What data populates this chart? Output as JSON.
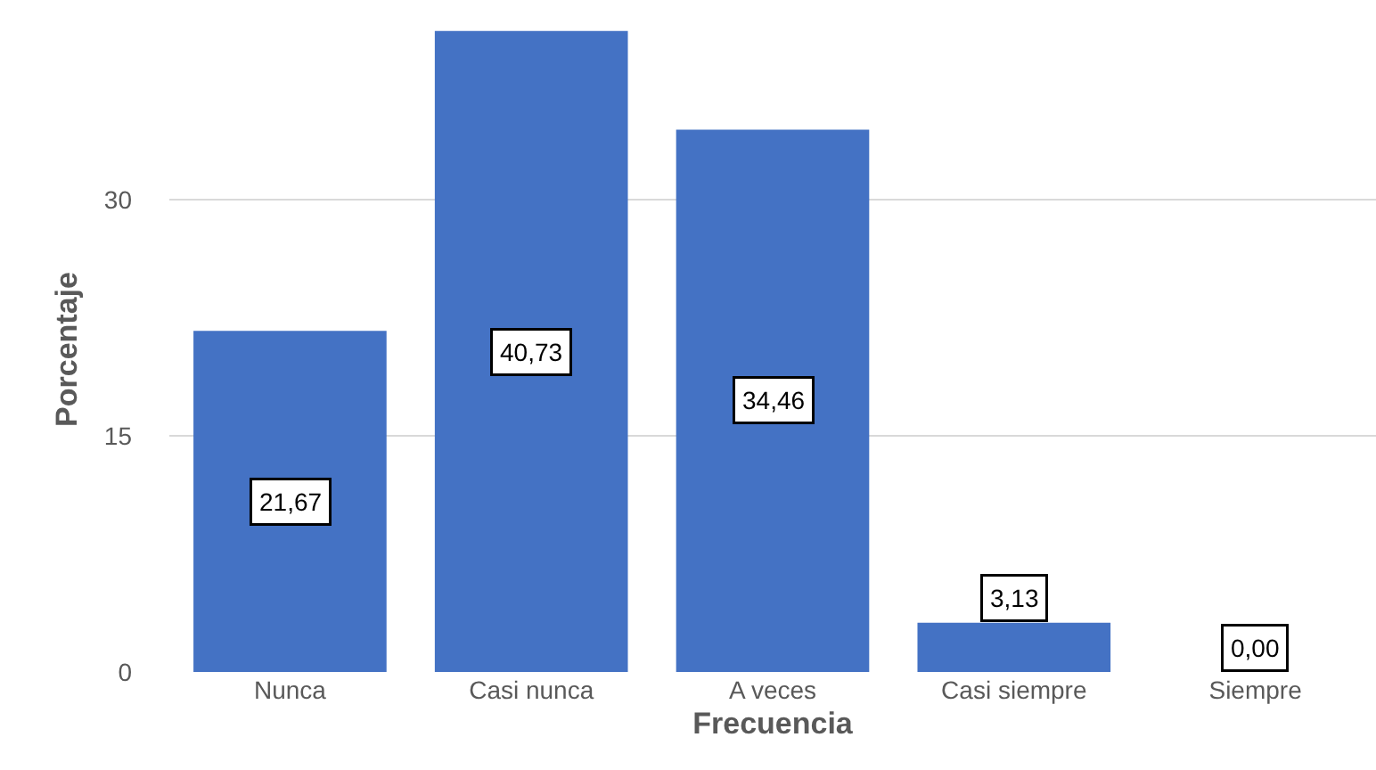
{
  "chart_data": {
    "type": "bar",
    "xlabel": "Frecuencia",
    "ylabel": "Porcentaje",
    "categories": [
      "Nunca",
      "Casi nunca",
      "A veces",
      "Casi siempre",
      "Siempre"
    ],
    "values": [
      21.67,
      40.73,
      34.46,
      3.13,
      0.0
    ],
    "value_labels": [
      "21,67",
      "40,73",
      "34,46",
      "3,13",
      "0,00"
    ],
    "color": "#4472c4",
    "ylim": [
      0,
      41
    ],
    "yticks": [
      0,
      15,
      30
    ],
    "grid": "y",
    "legend": false
  }
}
